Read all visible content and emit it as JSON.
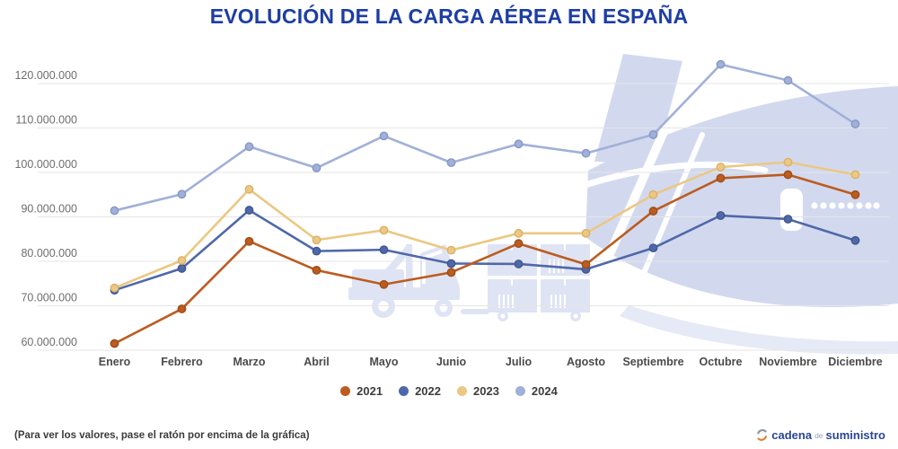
{
  "title": "EVOLUCIÓN DE LA CARGA AÉREA EN ESPAÑA",
  "footer": {
    "note": "(Para ver los valores, pase el ratón por encima de la gráfica)",
    "brand": {
      "cadena": "cadena",
      "de": "de",
      "suministro": "suministro"
    }
  },
  "colors": {
    "title": "#1d3da5",
    "grid": "#e5e5e5",
    "y_axis_text": "#6e6e6e",
    "x_axis_text": "#4a4a4a",
    "watermark": "#d2d9ef",
    "watermark_light": "#dfe4f4",
    "brand_blue": "#2a4694",
    "brand_orange": "#e0813c"
  },
  "chart_data": {
    "type": "line",
    "title": "EVOLUCIÓN DE LA CARGA AÉREA EN ESPAÑA",
    "categories": [
      "Enero",
      "Febrero",
      "Marzo",
      "Abril",
      "Mayo",
      "Junio",
      "Julio",
      "Agosto",
      "Septiembre",
      "Octubre",
      "Noviembre",
      "Diciembre"
    ],
    "yticks": [
      60000000,
      70000000,
      80000000,
      90000000,
      100000000,
      110000000,
      120000000
    ],
    "ytick_labels": [
      "60.000.000",
      "70.000.000",
      "80.000.000",
      "90.000.000",
      "100.000.000",
      "110.000.000",
      "120.000.000"
    ],
    "ylim": [
      60000000,
      126000000
    ],
    "grid": true,
    "legend_position": "bottom",
    "draw_order": [
      "2024",
      "2022",
      "2023",
      "2021"
    ],
    "series": [
      {
        "name": "2021",
        "color": "#bc5c1f",
        "marker_stroke": "#9d4c17",
        "values": [
          61500000,
          69300000,
          84500000,
          78000000,
          74800000,
          77500000,
          84000000,
          79300000,
          91300000,
          98700000,
          99500000,
          95000000
        ]
      },
      {
        "name": "2022",
        "color": "#4f68a9",
        "marker_stroke": "#41568e",
        "values": [
          73500000,
          78400000,
          91500000,
          82300000,
          82600000,
          79500000,
          79400000,
          78200000,
          83000000,
          90300000,
          89500000,
          84700000
        ]
      },
      {
        "name": "2023",
        "color": "#ebc883",
        "marker_stroke": "#d9b266",
        "values": [
          74000000,
          80200000,
          96200000,
          84800000,
          87000000,
          82500000,
          86300000,
          86300000,
          95000000,
          101200000,
          102300000,
          99500000
        ]
      },
      {
        "name": "2024",
        "color": "#a0b0d8",
        "marker_stroke": "#8597c5",
        "values": [
          91400000,
          95100000,
          105800000,
          101000000,
          108200000,
          102200000,
          106400000,
          104300000,
          108500000,
          124300000,
          120700000,
          110900000
        ]
      }
    ]
  }
}
